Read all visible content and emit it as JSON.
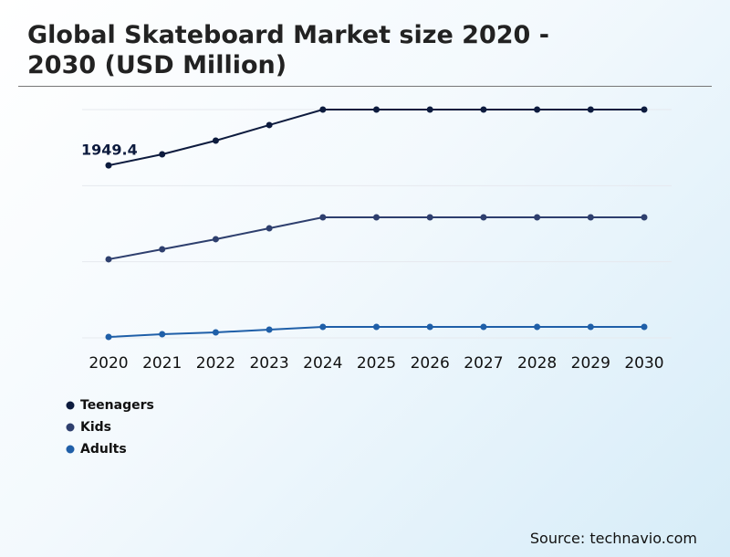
{
  "chart_data": {
    "type": "line",
    "title": "Global Skateboard Market size 2020 - 2030 (USD Million)",
    "source": "Source: technavio.com",
    "categories": [
      "2020",
      "2021",
      "2022",
      "2023",
      "2024",
      "2025",
      "2026",
      "2027",
      "2028",
      "2029",
      "2030"
    ],
    "series": [
      {
        "name": "Teenagers",
        "color": "#0d1b3e",
        "values": [
          1949.4,
          2074,
          2229,
          2405,
          2580,
          2580,
          2580,
          2580,
          2580,
          2580,
          2580
        ]
      },
      {
        "name": "Kids",
        "color": "#2e3f6e",
        "values": [
          888,
          1001,
          1115,
          1238,
          1362,
          1362,
          1362,
          1362,
          1362,
          1362,
          1362
        ]
      },
      {
        "name": "Adults",
        "color": "#1f5fa8",
        "values": [
          10,
          41,
          62,
          93,
          124,
          124,
          124,
          124,
          124,
          124,
          124
        ]
      }
    ],
    "ylim": [
      0,
      2580
    ],
    "grid": true
  }
}
